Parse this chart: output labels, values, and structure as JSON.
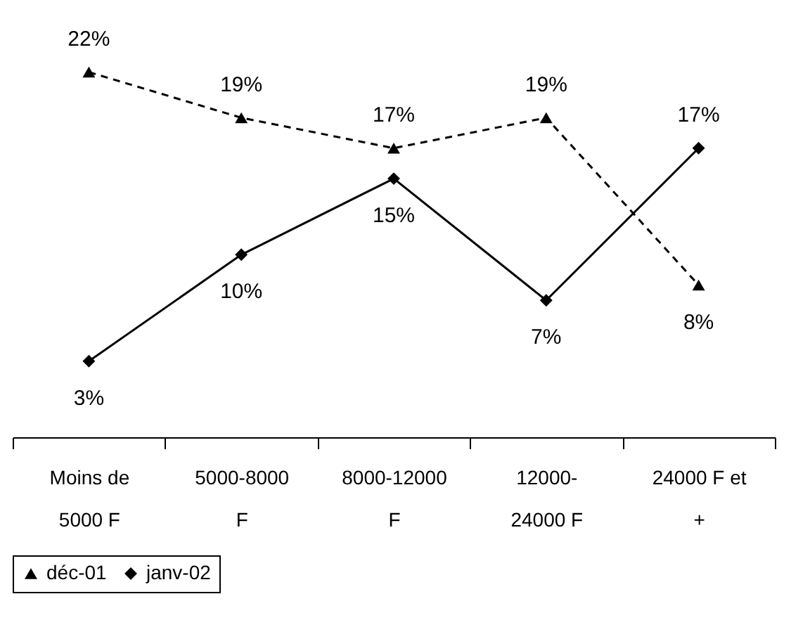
{
  "chart_data": {
    "type": "line",
    "categories": [
      "Moins de\n5000 F",
      "5000-8000\nF",
      "8000-12000\nF",
      "12000-\n24000 F",
      "24000 F et\n+"
    ],
    "series": [
      {
        "name": "déc-01",
        "color": "#000000",
        "marker": "triangle",
        "line_style": "dashed",
        "values": [
          22,
          19,
          17,
          19,
          8
        ],
        "value_labels": [
          "22%",
          "19%",
          "17%",
          "19%",
          "8%"
        ]
      },
      {
        "name": "janv-02",
        "color": "#000000",
        "marker": "diamond",
        "line_style": "solid",
        "values": [
          3,
          10,
          15,
          7,
          17
        ],
        "value_labels": [
          "3%",
          "10%",
          "15%",
          "7%",
          "17%"
        ]
      }
    ],
    "legend": "bottom",
    "grid": false
  }
}
